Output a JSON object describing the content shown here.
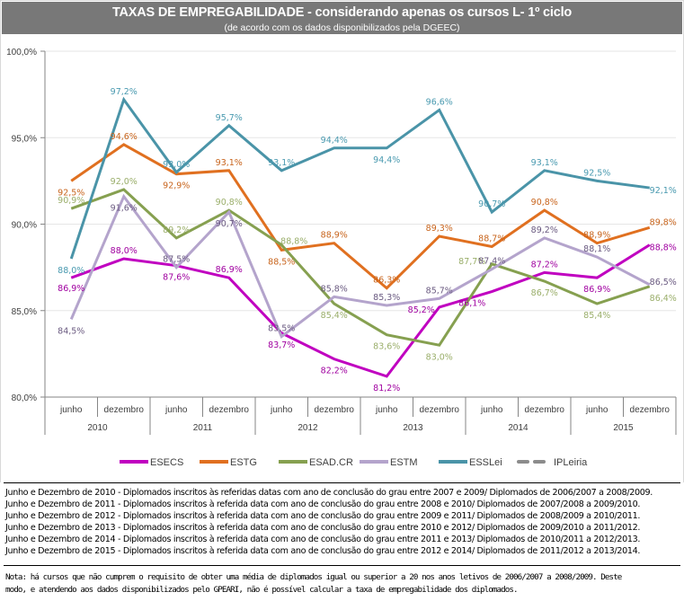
{
  "header": {
    "title": "TAXAS DE EMPREGABILIDADE - considerando apenas os cursos L- 1º ciclo",
    "subtitle": "(de acordo com os dados disponibilizados pela DGEEC)"
  },
  "chart_data": {
    "type": "line",
    "title": "TAXAS DE EMPREGABILIDADE - considerando apenas os cursos L- 1º ciclo",
    "subtitle": "(de acordo com os dados disponibilizados pela DGEEC)",
    "xlabel": "",
    "ylabel": "",
    "ylim": [
      80,
      100
    ],
    "yticks": [
      80,
      85,
      90,
      95,
      100
    ],
    "ytick_labels": [
      "80,0%",
      "85,0%",
      "90,0%",
      "95,0%",
      "100,0%"
    ],
    "grid": true,
    "legend_position": "bottom",
    "categories": [
      "junho",
      "dezembro",
      "junho",
      "dezembro",
      "junho",
      "dezembro",
      "junho",
      "dezembro",
      "junho",
      "dezembro",
      "junho",
      "dezembro"
    ],
    "category_groups": [
      "2010",
      "2011",
      "2012",
      "2013",
      "2014",
      "2015"
    ],
    "series": [
      {
        "name": "ESECS",
        "color": "#c000c0",
        "label_color": "#a000a0",
        "values": [
          86.9,
          88.0,
          87.6,
          86.9,
          83.7,
          82.2,
          81.2,
          85.2,
          86.1,
          87.2,
          86.9,
          88.8
        ],
        "labels": [
          "86,9%",
          "88,0%",
          "87,6%",
          "86,9%",
          "83,7%",
          "82,2%",
          "81,2%",
          "85,2%",
          "86,1%",
          "87,2%",
          "86,9%",
          "88,8%"
        ]
      },
      {
        "name": "ESTG",
        "color": "#e07020",
        "label_color": "#c8641c",
        "values": [
          92.5,
          94.6,
          92.9,
          93.1,
          88.5,
          88.9,
          86.3,
          89.3,
          88.7,
          90.8,
          88.9,
          89.8
        ],
        "labels": [
          "92,5%",
          "94,6%",
          "92,9%",
          "93,1%",
          "88,5%",
          "88,9%",
          "86,3%",
          "89,3%",
          "88,7%",
          "90,8%",
          "88,9%",
          "89,8%"
        ]
      },
      {
        "name": "ESAD.CR",
        "color": "#86a050",
        "label_color": "#9aae6a",
        "values": [
          90.9,
          92.0,
          89.2,
          90.8,
          88.8,
          85.4,
          83.6,
          83.0,
          87.7,
          86.7,
          85.4,
          86.4
        ],
        "labels": [
          "90,9%",
          "92,0%",
          "89,2%",
          "90,8%",
          "88,8%",
          "85,4%",
          "83,6%",
          "83,0%",
          "87,7%",
          "86,7%",
          "85,4%",
          "86,4%"
        ]
      },
      {
        "name": "ESTM",
        "color": "#b4a4cc",
        "label_color": "#6a5a80",
        "values": [
          84.5,
          91.6,
          87.5,
          90.7,
          83.5,
          85.8,
          85.3,
          85.7,
          87.4,
          89.2,
          88.1,
          86.5
        ],
        "labels": [
          "84,5%",
          "91,6%",
          "87,5%",
          "90,7%",
          "83,5%",
          "85,8%",
          "85,3%",
          "85,7%",
          "87,4%",
          "89,2%",
          "88,1%",
          "86,5%"
        ]
      },
      {
        "name": "ESSLei",
        "color": "#4a94a8",
        "label_color": "#4a9ab0",
        "values": [
          88.0,
          97.2,
          93.0,
          95.7,
          93.1,
          94.4,
          94.4,
          96.6,
          90.7,
          93.1,
          92.5,
          92.1
        ],
        "labels": [
          "88,0%",
          "97,2%",
          "93,0%",
          "95,7%",
          "93,1%",
          "94,4%",
          "94,4%",
          "96,6%",
          "90,7%",
          "93,1%",
          "92,5%",
          "92,1%"
        ]
      },
      {
        "name": "IPLeiria",
        "color": "#8c8c8c",
        "dashed": true,
        "values": [],
        "labels": []
      }
    ]
  },
  "notes": {
    "lines": [
      "Junho e Dezembro de 2010 - Diplomados inscritos às referidas datas com ano de conclusão do grau entre 2007 e 2009/ Diplomados de 2006/2007 a 2008/2009.",
      "Junho e Dezembro de 2011 - Diplomados inscritos à referida data com ano de conclusão do grau entre 2008 e 2010/ Diplomados de 2007/2008 a 2009/2010.",
      "Junho e Dezembro de 2012 - Diplomados inscritos à referida data com ano de conclusão do grau entre 2009 e 2011/ Diplomados de 2008/2009 a 2010/2011.",
      "Junho e Dezembro de 2013 - Diplomados inscritos à referida data com ano de conclusão do grau entre 2010 e 2012/ Diplomados de 2009/2010 a 2011/2012.",
      "Junho e Dezembro de 2014 - Diplomados inscritos à referida data com ano de conclusão do grau entre 2011 e 2013/ Diplomados de 2010/2011 a 2012/2013.",
      "Junho e Dezembro de 2015 - Diplomados inscritos à referida data com ano de conclusão do grau entre 2012 e 2014/ Diplomados de 2011/2012 a 2013/2014."
    ],
    "nota": [
      "Nota: há cursos que não cumprem o requisito de obter uma média de diplomados igual ou superior a 20 nos anos letivos de 2006/2007 a 2008/2009. Deste",
      "modo, e atendendo aos dados disponibilizados pelo GPEARI, não é possível calcular a taxa de empregabilidade dos diplomados."
    ]
  }
}
